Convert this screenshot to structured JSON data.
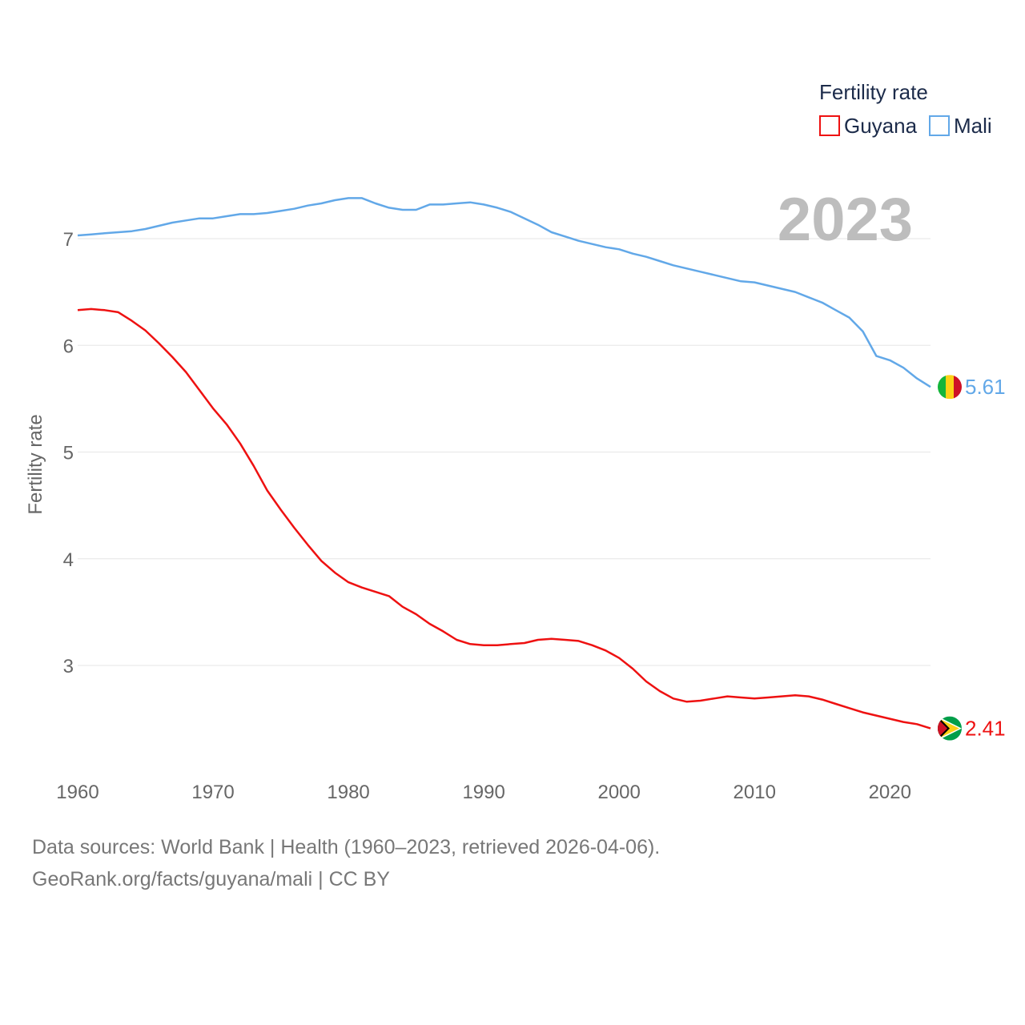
{
  "chart_data": {
    "type": "line",
    "title": "",
    "xlabel": "",
    "ylabel": "Fertility rate",
    "year_label": "2023",
    "xlim": [
      1960,
      2023
    ],
    "ylim": [
      2.0,
      7.6
    ],
    "x_ticks": [
      1960,
      1970,
      1980,
      1990,
      2000,
      2010,
      2020
    ],
    "y_ticks": [
      3,
      4,
      5,
      6,
      7
    ],
    "grid": true,
    "legend": {
      "title": "Fertility rate",
      "placement": "top-right",
      "entries": [
        "Guyana",
        "Mali"
      ]
    },
    "x": [
      1960,
      1961,
      1962,
      1963,
      1964,
      1965,
      1966,
      1967,
      1968,
      1969,
      1970,
      1971,
      1972,
      1973,
      1974,
      1975,
      1976,
      1977,
      1978,
      1979,
      1980,
      1981,
      1982,
      1983,
      1984,
      1985,
      1986,
      1987,
      1988,
      1989,
      1990,
      1991,
      1992,
      1993,
      1994,
      1995,
      1996,
      1997,
      1998,
      1999,
      2000,
      2001,
      2002,
      2003,
      2004,
      2005,
      2006,
      2007,
      2008,
      2009,
      2010,
      2011,
      2012,
      2013,
      2014,
      2015,
      2016,
      2017,
      2018,
      2019,
      2020,
      2021,
      2022,
      2023
    ],
    "series": [
      {
        "name": "Guyana",
        "color": "#ee1111",
        "end_label": "2.41",
        "flag": "guyana-flag",
        "values": [
          6.33,
          6.34,
          6.33,
          6.31,
          6.23,
          6.14,
          6.02,
          5.89,
          5.75,
          5.58,
          5.41,
          5.26,
          5.08,
          4.87,
          4.64,
          4.46,
          4.29,
          4.13,
          3.98,
          3.87,
          3.78,
          3.73,
          3.69,
          3.65,
          3.55,
          3.48,
          3.39,
          3.32,
          3.24,
          3.2,
          3.19,
          3.19,
          3.2,
          3.21,
          3.24,
          3.25,
          3.24,
          3.23,
          3.19,
          3.14,
          3.07,
          2.97,
          2.85,
          2.76,
          2.69,
          2.66,
          2.67,
          2.69,
          2.71,
          2.7,
          2.69,
          2.7,
          2.71,
          2.72,
          2.71,
          2.68,
          2.64,
          2.6,
          2.56,
          2.53,
          2.5,
          2.47,
          2.45,
          2.41
        ]
      },
      {
        "name": "Mali",
        "color": "#62a8e8",
        "end_label": "5.61",
        "flag": "mali-flag",
        "values": [
          7.03,
          7.04,
          7.05,
          7.06,
          7.07,
          7.09,
          7.12,
          7.15,
          7.17,
          7.19,
          7.19,
          7.21,
          7.23,
          7.23,
          7.24,
          7.26,
          7.28,
          7.31,
          7.33,
          7.36,
          7.38,
          7.38,
          7.33,
          7.29,
          7.27,
          7.27,
          7.32,
          7.32,
          7.33,
          7.34,
          7.32,
          7.29,
          7.25,
          7.19,
          7.13,
          7.06,
          7.02,
          6.98,
          6.95,
          6.92,
          6.9,
          6.86,
          6.83,
          6.79,
          6.75,
          6.72,
          6.69,
          6.66,
          6.63,
          6.6,
          6.59,
          6.56,
          6.53,
          6.5,
          6.45,
          6.4,
          6.33,
          6.26,
          6.13,
          5.9,
          5.86,
          5.79,
          5.69,
          5.61
        ]
      }
    ]
  },
  "footer": {
    "line1": "Data sources: World Bank | Health (1960–2023, retrieved 2026-04-06).",
    "line2": "GeoRank.org/facts/guyana/mali | CC BY"
  }
}
